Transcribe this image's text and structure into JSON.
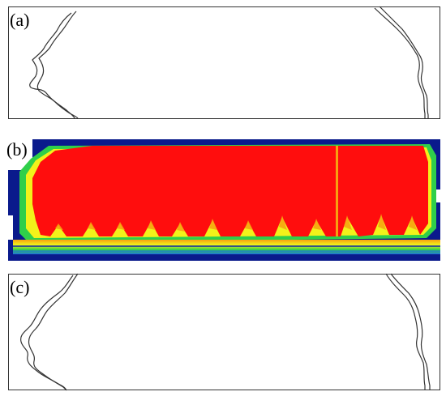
{
  "panels": [
    {
      "label": "(a)",
      "kind": "outline"
    },
    {
      "label": "(b)",
      "kind": "colormap"
    },
    {
      "label": "(c)",
      "kind": "outline"
    }
  ],
  "colors": {
    "frame": "#333333",
    "outline": "#333333",
    "map_background": "#0a1a8c",
    "map_dark_blue": "#0b24a6",
    "map_blue": "#1f6fe0",
    "map_green": "#2fcf4a",
    "map_yellow": "#f2f21a",
    "map_orange": "#f7a010",
    "map_red": "#ff0d0d"
  }
}
